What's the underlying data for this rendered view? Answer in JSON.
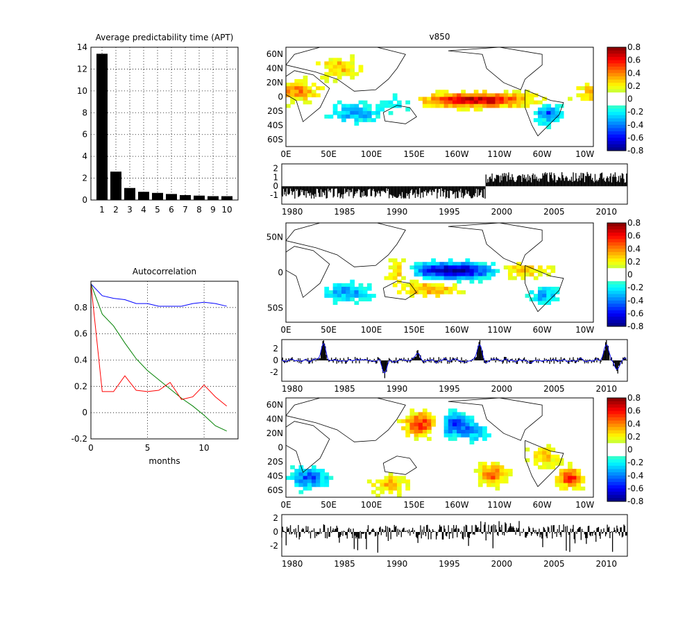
{
  "chart_data": [
    {
      "type": "bar",
      "title": "Average predictability time (APT)",
      "categories": [
        "1",
        "2",
        "3",
        "4",
        "5",
        "6",
        "7",
        "8",
        "9",
        "10"
      ],
      "values": [
        13.4,
        2.6,
        1.1,
        0.75,
        0.65,
        0.55,
        0.45,
        0.4,
        0.35,
        0.35
      ],
      "ylim": [
        0,
        14
      ],
      "yticks": [
        "0",
        "2",
        "4",
        "6",
        "8",
        "10",
        "12",
        "14"
      ],
      "grid": true,
      "color": "#000000"
    },
    {
      "type": "line",
      "title": "Autocorrelation",
      "xlabel": "months",
      "xlim": [
        0,
        13
      ],
      "ylim": [
        -0.2,
        1.0
      ],
      "xticks": [
        "0",
        "5",
        "10"
      ],
      "yticks": [
        "-0.2",
        "0",
        "0.2",
        "0.4",
        "0.6",
        "0.8"
      ],
      "grid": true,
      "series": [
        {
          "color": "#0000ff",
          "x": [
            0,
            1,
            2,
            3,
            4,
            5,
            6,
            7,
            8,
            9,
            10,
            11,
            12
          ],
          "values": [
            0.98,
            0.89,
            0.87,
            0.86,
            0.83,
            0.83,
            0.81,
            0.81,
            0.81,
            0.83,
            0.84,
            0.83,
            0.81
          ]
        },
        {
          "color": "#008000",
          "x": [
            0,
            1,
            2,
            3,
            4,
            5,
            6,
            7,
            8,
            9,
            10,
            11,
            12
          ],
          "values": [
            0.98,
            0.75,
            0.66,
            0.53,
            0.41,
            0.32,
            0.25,
            0.18,
            0.11,
            0.05,
            -0.02,
            -0.1,
            -0.14
          ]
        },
        {
          "color": "#ff0000",
          "x": [
            0,
            1,
            2,
            3,
            4,
            5,
            6,
            7,
            8,
            9,
            10,
            11,
            12
          ],
          "values": [
            0.98,
            0.16,
            0.16,
            0.28,
            0.17,
            0.16,
            0.17,
            0.23,
            0.1,
            0.12,
            0.21,
            0.12,
            0.05
          ]
        }
      ]
    },
    {
      "type": "heatmap",
      "title": "v850",
      "map": "global-lat-lon",
      "xticks": [
        "0E",
        "50E",
        "100E",
        "150E",
        "160W",
        "110W",
        "60W",
        "10W"
      ],
      "yticks": [
        "60N",
        "40N",
        "20N",
        "0",
        "20S",
        "40S",
        "60S"
      ],
      "colorbar": {
        "ticks": [
          "0.8",
          "0.6",
          "0.4",
          "0.2",
          "0",
          "-0.2",
          "-0.4",
          "-0.6",
          "-0.8"
        ],
        "colormap": "jet-centered-white",
        "clim": [
          -0.8,
          0.8
        ]
      },
      "pattern": "positive (red) band along equatorial eastern Pacific 150E-90W; positive patches N Africa/Eurasia; negative (blue) patches Indian Ocean, subtropical Pacific and S America"
    },
    {
      "type": "bar",
      "series_kind": "timeseries",
      "xlim": [
        1979,
        2012
      ],
      "ylim": [
        -2,
        2.5
      ],
      "xticks": [
        "1980",
        "1985",
        "1990",
        "1995",
        "2000",
        "2005",
        "2010"
      ],
      "yticks": [
        "2",
        "1",
        "0",
        "-1"
      ],
      "summary": "values around -0.8 before 1998, step change to around +1.0 after 1998"
    },
    {
      "type": "heatmap",
      "map": "global-lat-lon",
      "xticks": [
        "0E",
        "50E",
        "100E",
        "150E",
        "160W",
        "110W",
        "60W",
        "10W"
      ],
      "yticks": [
        "50N",
        "0",
        "50S"
      ],
      "colorbar": {
        "ticks": [
          "0.8",
          "0.6",
          "0.4",
          "0.2",
          "0",
          "-0.2",
          "-0.4",
          "-0.6",
          "-0.8"
        ],
        "colormap": "jet-centered-white",
        "clim": [
          -0.8,
          0.8
        ]
      },
      "pattern": "negative (blue) ENSO-like tongue in central equatorial Pacific; positive (orange) bands maritime continent and eastern Pacific subtropics"
    },
    {
      "type": "bar",
      "series_kind": "timeseries",
      "xlim": [
        1979,
        2012
      ],
      "ylim": [
        -3.5,
        3.5
      ],
      "xticks": [
        "1980",
        "1985",
        "1990",
        "1995",
        "2000",
        "2005",
        "2010"
      ],
      "yticks": [
        "2",
        "0",
        "-2"
      ],
      "overlay_line_color": "#0000ff",
      "peaks": [
        {
          "x": 1983.0,
          "y": 3.2
        },
        {
          "x": 1988.8,
          "y": -2.5
        },
        {
          "x": 1992.0,
          "y": 1.5
        },
        {
          "x": 1997.9,
          "y": 3.3
        },
        {
          "x": 2010.0,
          "y": 3.3
        },
        {
          "x": 2011.0,
          "y": -2.2
        }
      ],
      "summary": "ENSO-like index with peaks 1983, 1998, 2010"
    },
    {
      "type": "heatmap",
      "map": "global-lat-lon",
      "xticks": [
        "0E",
        "50E",
        "100E",
        "150E",
        "160W",
        "110W",
        "60W",
        "10W"
      ],
      "yticks": [
        "60N",
        "40N",
        "20N",
        "0",
        "20S",
        "40S",
        "60S"
      ],
      "colorbar": {
        "ticks": [
          "0.8",
          "0.6",
          "0.4",
          "0.2",
          "0",
          "-0.2",
          "-0.4",
          "-0.6",
          "-0.8"
        ],
        "colormap": "jet-centered-white",
        "clim": [
          -0.8,
          0.8
        ]
      },
      "pattern": "alternating orange/blue wave-train cells across the southern and northern Pacific; blue over southern Atlantic/Africa"
    },
    {
      "type": "bar",
      "series_kind": "timeseries",
      "xlim": [
        1979,
        2012
      ],
      "ylim": [
        -3.5,
        2.5
      ],
      "xticks": [
        "1980",
        "1985",
        "1990",
        "1995",
        "2000",
        "2005",
        "2010"
      ],
      "yticks": [
        "2",
        "0",
        "-2"
      ],
      "summary": "noisy monthly series between about -3 and +2"
    }
  ]
}
